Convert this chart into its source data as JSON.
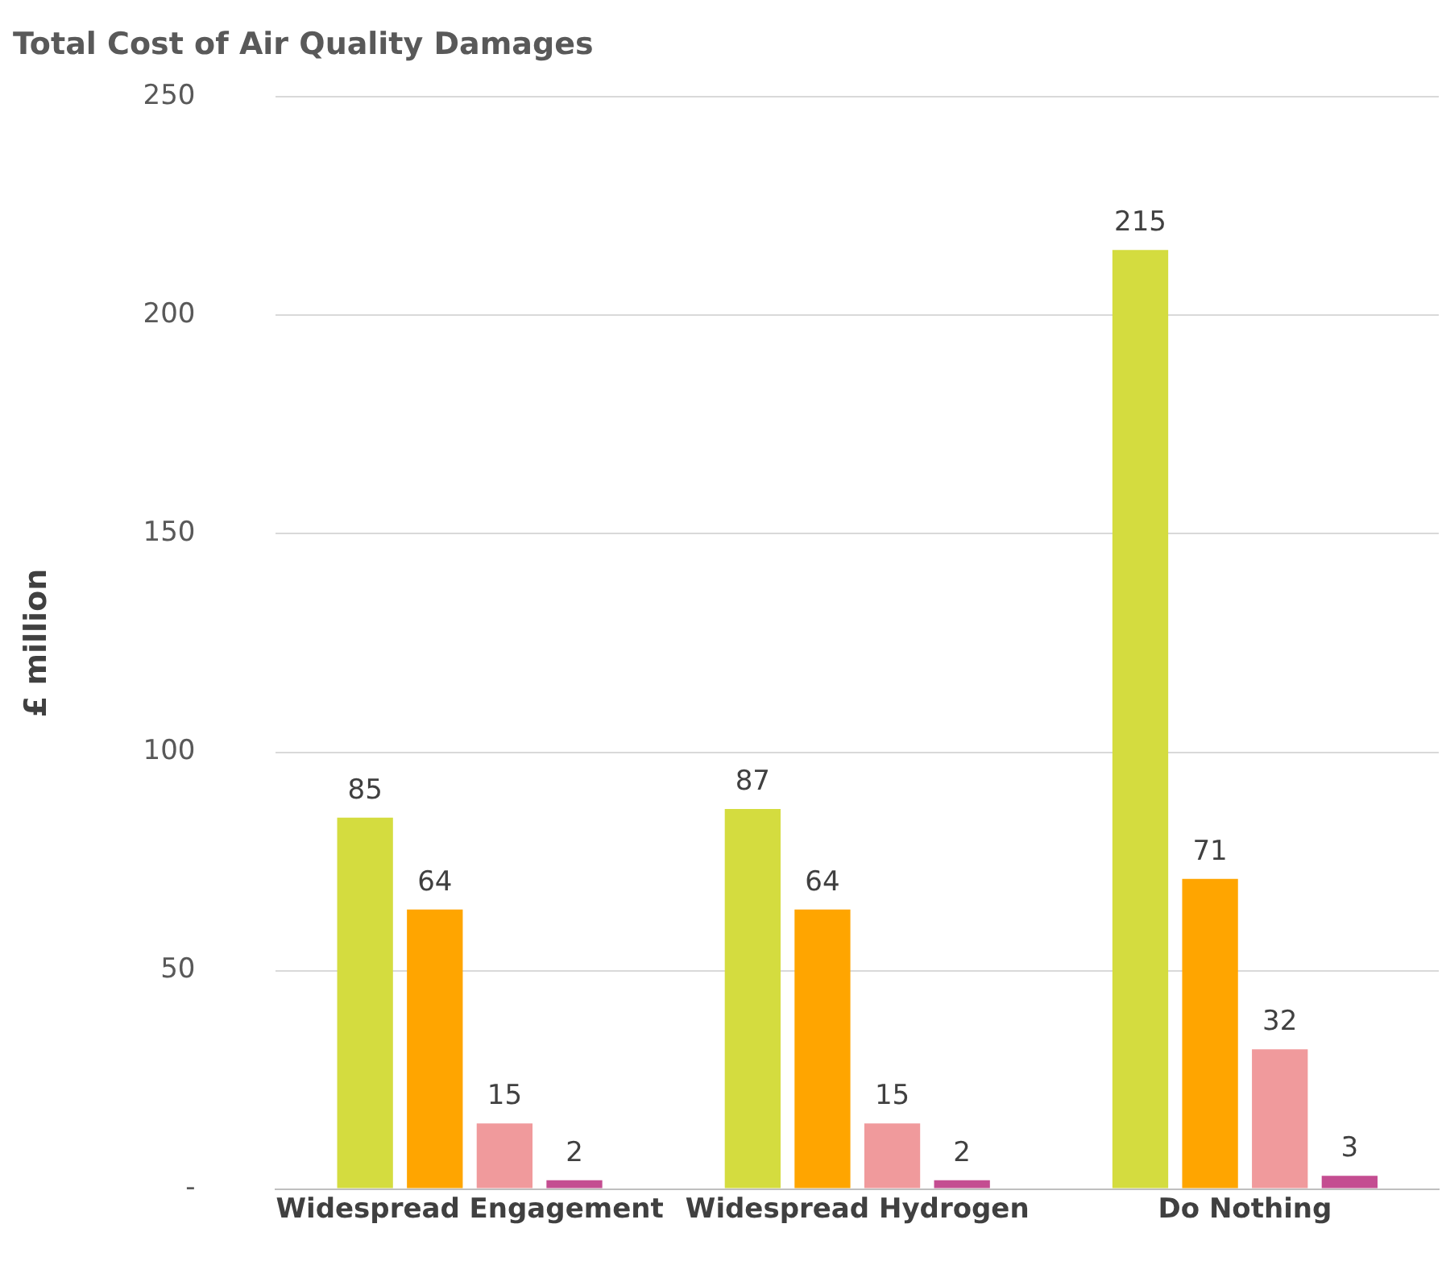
{
  "chart_data": {
    "type": "bar",
    "title": "Total Cost of Air Quality Damages",
    "ylabel": "£ million",
    "categories": [
      "Widespread Engagement",
      "Widespread Hydrogen",
      "Do Nothing"
    ],
    "series": [
      {
        "color": "#d4dc3f",
        "values": [
          85,
          87,
          215
        ]
      },
      {
        "color": "#ffa500",
        "values": [
          64,
          64,
          71
        ]
      },
      {
        "color": "#f09a9c",
        "values": [
          15,
          15,
          32
        ]
      },
      {
        "color": "#c44d91",
        "values": [
          2,
          2,
          3
        ]
      }
    ],
    "ylim": [
      0,
      250
    ],
    "yticks": [
      {
        "value": 0,
        "label": "-"
      },
      50,
      100,
      150,
      200,
      250
    ],
    "grid": "y",
    "legend": false,
    "data_labels": true
  }
}
